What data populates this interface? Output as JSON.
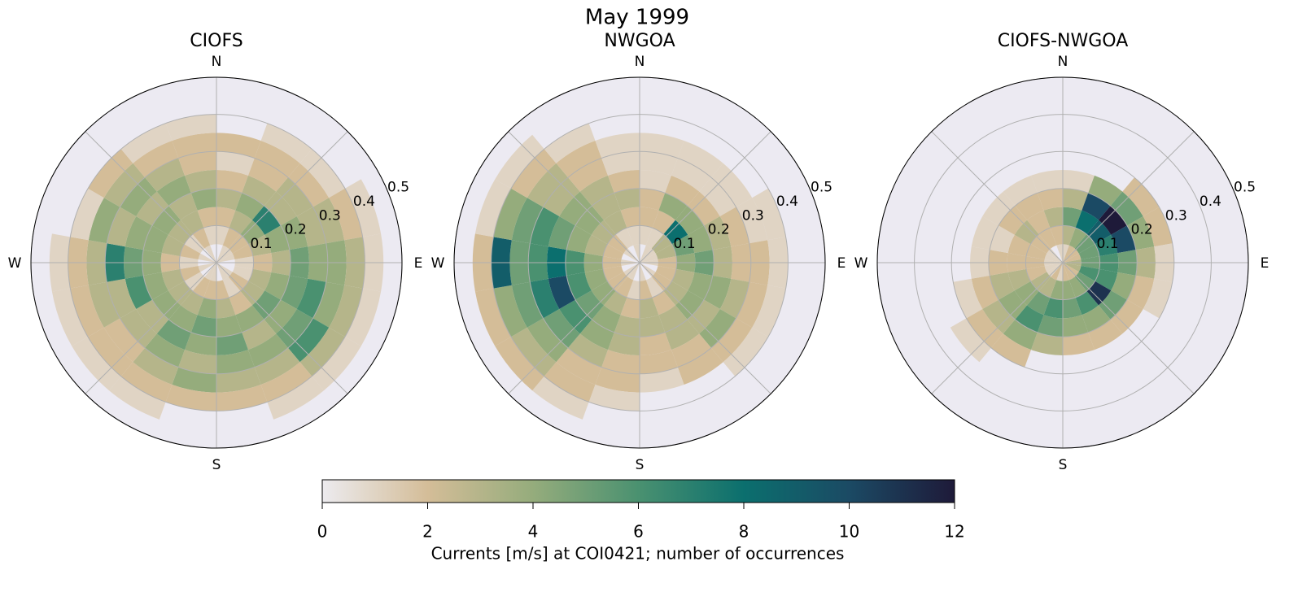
{
  "title": "May 1999",
  "colorbar": {
    "label": "Currents [m/s] at COI0421; number of occurrences",
    "lim": [
      0,
      12
    ],
    "ticks": [
      0,
      2,
      4,
      6,
      8,
      10,
      12
    ],
    "colors": [
      "#ecebef",
      "#d4bd98",
      "#95ac7c",
      "#4a9170",
      "#0b6f6e",
      "#1b4a64",
      "#1e1a39"
    ]
  },
  "chart_data": [
    {
      "type": "polar-histogram",
      "title": "CIOFS",
      "directions": [
        "N",
        "E",
        "S",
        "W"
      ],
      "rlim": [
        0,
        0.5
      ],
      "rticks": [
        0.1,
        0.2,
        0.3,
        0.4,
        0.5
      ],
      "theta_bins": [
        0,
        20,
        40,
        60,
        80,
        100,
        120,
        140,
        160,
        180,
        200,
        220,
        240,
        260,
        280,
        300,
        320,
        340,
        360
      ],
      "r_bins": [
        0,
        0.05,
        0.1,
        0.15,
        0.2,
        0.25,
        0.3,
        0.35,
        0.4,
        0.45
      ],
      "counts": [
        [
          0,
          1,
          2,
          3,
          2,
          1,
          2,
          0,
          0
        ],
        [
          1,
          2,
          3,
          4,
          3,
          2,
          2,
          1,
          0
        ],
        [
          1,
          2,
          4,
          7,
          3,
          3,
          2,
          1,
          0
        ],
        [
          1,
          2,
          3,
          4,
          4,
          3,
          3,
          2,
          1
        ],
        [
          0,
          1,
          2,
          3,
          5,
          4,
          4,
          3,
          1
        ],
        [
          0,
          1,
          3,
          4,
          5,
          6,
          4,
          3,
          1
        ],
        [
          1,
          2,
          3,
          5,
          4,
          5,
          6,
          3,
          1
        ],
        [
          1,
          1,
          2,
          4,
          3,
          4,
          3,
          2,
          1
        ],
        [
          0,
          2,
          3,
          4,
          5,
          4,
          3,
          2,
          0
        ],
        [
          1,
          2,
          4,
          5,
          4,
          3,
          4,
          2,
          0
        ],
        [
          1,
          2,
          3,
          4,
          5,
          4,
          3,
          2,
          1
        ],
        [
          0,
          1,
          3,
          4,
          3,
          3,
          2,
          2,
          1
        ],
        [
          1,
          2,
          3,
          4,
          6,
          3,
          3,
          2,
          1
        ],
        [
          0,
          1,
          2,
          4,
          5,
          7,
          3,
          2,
          1
        ],
        [
          1,
          2,
          3,
          4,
          4,
          3,
          4,
          1,
          0
        ],
        [
          0,
          1,
          3,
          4,
          3,
          4,
          3,
          2,
          0
        ],
        [
          1,
          2,
          3,
          3,
          4,
          3,
          2,
          1,
          0
        ],
        [
          0,
          1,
          2,
          4,
          3,
          2,
          2,
          1,
          0
        ]
      ]
    },
    {
      "type": "polar-histogram",
      "title": "NWGOA",
      "directions": [
        "N",
        "E",
        "S",
        "W"
      ],
      "rlim": [
        0,
        0.5
      ],
      "rticks": [
        0.1,
        0.2,
        0.3,
        0.4,
        0.5
      ],
      "theta_bins": [
        0,
        20,
        40,
        60,
        80,
        100,
        120,
        140,
        160,
        180,
        200,
        220,
        240,
        260,
        280,
        300,
        320,
        340,
        360
      ],
      "r_bins": [
        0,
        0.05,
        0.1,
        0.15,
        0.2,
        0.25,
        0.3,
        0.35,
        0.4,
        0.45
      ],
      "counts": [
        [
          0,
          1,
          2,
          2,
          1,
          1,
          1,
          0,
          0
        ],
        [
          1,
          1,
          2,
          4,
          2,
          1,
          1,
          0,
          0
        ],
        [
          1,
          3,
          8,
          4,
          2,
          1,
          1,
          0,
          0
        ],
        [
          1,
          3,
          5,
          4,
          3,
          2,
          1,
          1,
          0
        ],
        [
          1,
          2,
          4,
          5,
          3,
          2,
          2,
          1,
          0
        ],
        [
          0,
          2,
          3,
          4,
          4,
          3,
          2,
          1,
          0
        ],
        [
          1,
          2,
          3,
          4,
          3,
          4,
          2,
          1,
          0
        ],
        [
          0,
          1,
          2,
          3,
          3,
          2,
          2,
          0,
          0
        ],
        [
          1,
          2,
          3,
          3,
          2,
          2,
          1,
          0,
          0
        ],
        [
          0,
          1,
          2,
          3,
          3,
          2,
          2,
          1,
          0
        ],
        [
          1,
          2,
          3,
          4,
          4,
          3,
          2,
          2,
          1
        ],
        [
          1,
          2,
          4,
          5,
          6,
          5,
          4,
          3,
          2
        ],
        [
          0,
          2,
          4,
          6,
          10,
          7,
          5,
          4,
          2
        ],
        [
          1,
          2,
          4,
          6,
          8,
          6,
          5,
          9,
          2
        ],
        [
          0,
          2,
          3,
          4,
          5,
          6,
          5,
          4,
          1
        ],
        [
          1,
          2,
          3,
          4,
          4,
          3,
          3,
          2,
          1
        ],
        [
          0,
          1,
          3,
          3,
          3,
          2,
          2,
          1,
          0
        ],
        [
          1,
          1,
          2,
          3,
          2,
          1,
          1,
          0,
          0
        ]
      ]
    },
    {
      "type": "polar-histogram",
      "title": "CIOFS-NWGOA",
      "directions": [
        "N",
        "E",
        "S",
        "W"
      ],
      "rlim": [
        0,
        0.5
      ],
      "rticks": [
        0.1,
        0.2,
        0.3,
        0.4,
        0.5
      ],
      "theta_bins": [
        0,
        20,
        40,
        60,
        80,
        100,
        120,
        140,
        160,
        180,
        200,
        220,
        240,
        260,
        280,
        300,
        320,
        340,
        360
      ],
      "r_bins": [
        0,
        0.05,
        0.1,
        0.15,
        0.2,
        0.25,
        0.3,
        0.35,
        0.4,
        0.45
      ],
      "counts": [
        [
          1,
          3,
          5,
          3,
          1,
          0,
          0,
          0,
          0
        ],
        [
          2,
          4,
          8,
          10,
          4,
          0,
          0,
          0,
          0
        ],
        [
          2,
          5,
          9,
          12,
          5,
          2,
          0,
          0,
          0
        ],
        [
          2,
          5,
          7,
          10,
          4,
          2,
          0,
          0,
          0
        ],
        [
          3,
          5,
          6,
          5,
          3,
          1,
          0,
          0,
          0
        ],
        [
          3,
          6,
          6,
          4,
          2,
          1,
          0,
          0,
          0
        ],
        [
          2,
          5,
          11,
          5,
          2,
          0,
          0,
          0,
          0
        ],
        [
          2,
          4,
          6,
          4,
          2,
          0,
          0,
          0,
          0
        ],
        [
          2,
          4,
          5,
          4,
          2,
          0,
          0,
          0,
          0
        ],
        [
          1,
          4,
          6,
          5,
          3,
          0,
          0,
          0,
          0
        ],
        [
          2,
          3,
          5,
          6,
          4,
          2,
          0,
          0,
          0
        ],
        [
          1,
          3,
          4,
          4,
          3,
          2,
          1,
          0,
          0
        ],
        [
          1,
          2,
          3,
          3,
          2,
          1,
          0,
          0,
          0
        ],
        [
          1,
          2,
          2,
          2,
          1,
          0,
          0,
          0,
          0
        ],
        [
          1,
          2,
          2,
          1,
          1,
          0,
          0,
          0,
          0
        ],
        [
          1,
          2,
          3,
          2,
          1,
          0,
          0,
          0,
          0
        ],
        [
          0,
          2,
          2,
          2,
          1,
          0,
          0,
          0,
          0
        ],
        [
          1,
          2,
          3,
          2,
          1,
          0,
          0,
          0,
          0
        ]
      ]
    }
  ]
}
